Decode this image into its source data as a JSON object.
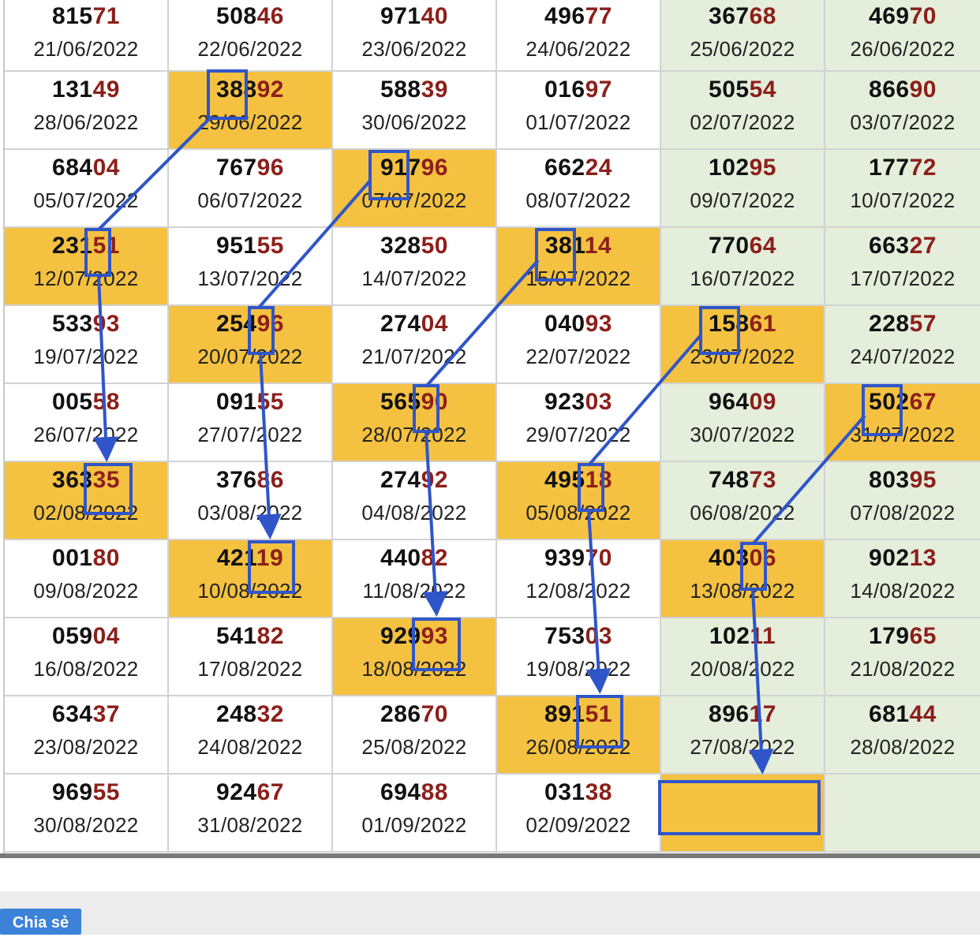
{
  "table": {
    "cells": [
      {
        "id": "c-0-0",
        "num": "81571",
        "date": "21/06/2022",
        "bg": "white"
      },
      {
        "id": "c-0-1",
        "num": "50846",
        "date": "22/06/2022",
        "bg": "white"
      },
      {
        "id": "c-0-2",
        "num": "97140",
        "date": "23/06/2022",
        "bg": "white"
      },
      {
        "id": "c-0-3",
        "num": "49677",
        "date": "24/06/2022",
        "bg": "white"
      },
      {
        "id": "c-0-4",
        "num": "36768",
        "date": "25/06/2022",
        "bg": "green"
      },
      {
        "id": "c-0-5",
        "num": "46970",
        "date": "26/06/2022",
        "bg": "green"
      },
      {
        "id": "c-1-0",
        "num": "13149",
        "date": "28/06/2022",
        "bg": "white"
      },
      {
        "id": "c-1-1",
        "num": "38892",
        "date": "29/06/2022",
        "bg": "gold"
      },
      {
        "id": "c-1-2",
        "num": "58839",
        "date": "30/06/2022",
        "bg": "white"
      },
      {
        "id": "c-1-3",
        "num": "01697",
        "date": "01/07/2022",
        "bg": "white"
      },
      {
        "id": "c-1-4",
        "num": "50554",
        "date": "02/07/2022",
        "bg": "green"
      },
      {
        "id": "c-1-5",
        "num": "86690",
        "date": "03/07/2022",
        "bg": "green"
      },
      {
        "id": "c-2-0",
        "num": "68404",
        "date": "05/07/2022",
        "bg": "white"
      },
      {
        "id": "c-2-1",
        "num": "76796",
        "date": "06/07/2022",
        "bg": "white"
      },
      {
        "id": "c-2-2",
        "num": "91796",
        "date": "07/07/2022",
        "bg": "gold"
      },
      {
        "id": "c-2-3",
        "num": "66224",
        "date": "08/07/2022",
        "bg": "white"
      },
      {
        "id": "c-2-4",
        "num": "10295",
        "date": "09/07/2022",
        "bg": "green"
      },
      {
        "id": "c-2-5",
        "num": "17772",
        "date": "10/07/2022",
        "bg": "green"
      },
      {
        "id": "c-3-0",
        "num": "23151",
        "date": "12/07/2022",
        "bg": "gold"
      },
      {
        "id": "c-3-1",
        "num": "95155",
        "date": "13/07/2022",
        "bg": "white"
      },
      {
        "id": "c-3-2",
        "num": "32850",
        "date": "14/07/2022",
        "bg": "white"
      },
      {
        "id": "c-3-3",
        "num": "38114",
        "date": "15/07/2022",
        "bg": "gold"
      },
      {
        "id": "c-3-4",
        "num": "77064",
        "date": "16/07/2022",
        "bg": "green"
      },
      {
        "id": "c-3-5",
        "num": "66327",
        "date": "17/07/2022",
        "bg": "green"
      },
      {
        "id": "c-4-0",
        "num": "53393",
        "date": "19/07/2022",
        "bg": "white"
      },
      {
        "id": "c-4-1",
        "num": "25496",
        "date": "20/07/2022",
        "bg": "gold"
      },
      {
        "id": "c-4-2",
        "num": "27404",
        "date": "21/07/2022",
        "bg": "white"
      },
      {
        "id": "c-4-3",
        "num": "04093",
        "date": "22/07/2022",
        "bg": "white"
      },
      {
        "id": "c-4-4",
        "num": "15861",
        "date": "23/07/2022",
        "bg": "gold"
      },
      {
        "id": "c-4-5",
        "num": "22857",
        "date": "24/07/2022",
        "bg": "green"
      },
      {
        "id": "c-5-0",
        "num": "00558",
        "date": "26/07/2022",
        "bg": "white"
      },
      {
        "id": "c-5-1",
        "num": "09155",
        "date": "27/07/2022",
        "bg": "white"
      },
      {
        "id": "c-5-2",
        "num": "56590",
        "date": "28/07/2022",
        "bg": "gold"
      },
      {
        "id": "c-5-3",
        "num": "92303",
        "date": "29/07/2022",
        "bg": "white"
      },
      {
        "id": "c-5-4",
        "num": "96409",
        "date": "30/07/2022",
        "bg": "green"
      },
      {
        "id": "c-5-5",
        "num": "50267",
        "date": "31/07/2022",
        "bg": "gold"
      },
      {
        "id": "c-6-0",
        "num": "36335",
        "date": "02/08/2022",
        "bg": "gold"
      },
      {
        "id": "c-6-1",
        "num": "37686",
        "date": "03/08/2022",
        "bg": "white"
      },
      {
        "id": "c-6-2",
        "num": "27492",
        "date": "04/08/2022",
        "bg": "white"
      },
      {
        "id": "c-6-3",
        "num": "49518",
        "date": "05/08/2022",
        "bg": "gold"
      },
      {
        "id": "c-6-4",
        "num": "74873",
        "date": "06/08/2022",
        "bg": "green"
      },
      {
        "id": "c-6-5",
        "num": "80395",
        "date": "07/08/2022",
        "bg": "green"
      },
      {
        "id": "c-7-0",
        "num": "00180",
        "date": "09/08/2022",
        "bg": "white"
      },
      {
        "id": "c-7-1",
        "num": "42119",
        "date": "10/08/2022",
        "bg": "gold"
      },
      {
        "id": "c-7-2",
        "num": "44082",
        "date": "11/08/2022",
        "bg": "white"
      },
      {
        "id": "c-7-3",
        "num": "93970",
        "date": "12/08/2022",
        "bg": "white"
      },
      {
        "id": "c-7-4",
        "num": "40306",
        "date": "13/08/2022",
        "bg": "gold"
      },
      {
        "id": "c-7-5",
        "num": "90213",
        "date": "14/08/2022",
        "bg": "green"
      },
      {
        "id": "c-8-0",
        "num": "05904",
        "date": "16/08/2022",
        "bg": "white"
      },
      {
        "id": "c-8-1",
        "num": "54182",
        "date": "17/08/2022",
        "bg": "white"
      },
      {
        "id": "c-8-2",
        "num": "92993",
        "date": "18/08/2022",
        "bg": "gold"
      },
      {
        "id": "c-8-3",
        "num": "75303",
        "date": "19/08/2022",
        "bg": "white"
      },
      {
        "id": "c-8-4",
        "num": "10211",
        "date": "20/08/2022",
        "bg": "green"
      },
      {
        "id": "c-8-5",
        "num": "17965",
        "date": "21/08/2022",
        "bg": "green"
      },
      {
        "id": "c-9-0",
        "num": "63437",
        "date": "23/08/2022",
        "bg": "white"
      },
      {
        "id": "c-9-1",
        "num": "24832",
        "date": "24/08/2022",
        "bg": "white"
      },
      {
        "id": "c-9-2",
        "num": "28670",
        "date": "25/08/2022",
        "bg": "white"
      },
      {
        "id": "c-9-3",
        "num": "89151",
        "date": "26/08/2022",
        "bg": "gold"
      },
      {
        "id": "c-9-4",
        "num": "89617",
        "date": "27/08/2022",
        "bg": "green"
      },
      {
        "id": "c-9-5",
        "num": "68144",
        "date": "28/08/2022",
        "bg": "green"
      },
      {
        "id": "c-10-0",
        "num": "96955",
        "date": "30/08/2022",
        "bg": "white"
      },
      {
        "id": "c-10-1",
        "num": "92467",
        "date": "31/08/2022",
        "bg": "white"
      },
      {
        "id": "c-10-2",
        "num": "69488",
        "date": "01/09/2022",
        "bg": "white"
      },
      {
        "id": "c-10-3",
        "num": "03138",
        "date": "02/09/2022",
        "bg": "white"
      },
      {
        "id": "c-10-4",
        "num": "",
        "date": "",
        "bg": "gold"
      },
      {
        "id": "c-10-5",
        "num": "",
        "date": "",
        "bg": "green"
      }
    ]
  },
  "footer": {
    "share_label": "Chia sẻ"
  },
  "colors": {
    "gold": "#f4c141",
    "green": "#e4eedb",
    "tail_red": "#8c1f1a",
    "annotation_blue": "#2f55c9"
  }
}
